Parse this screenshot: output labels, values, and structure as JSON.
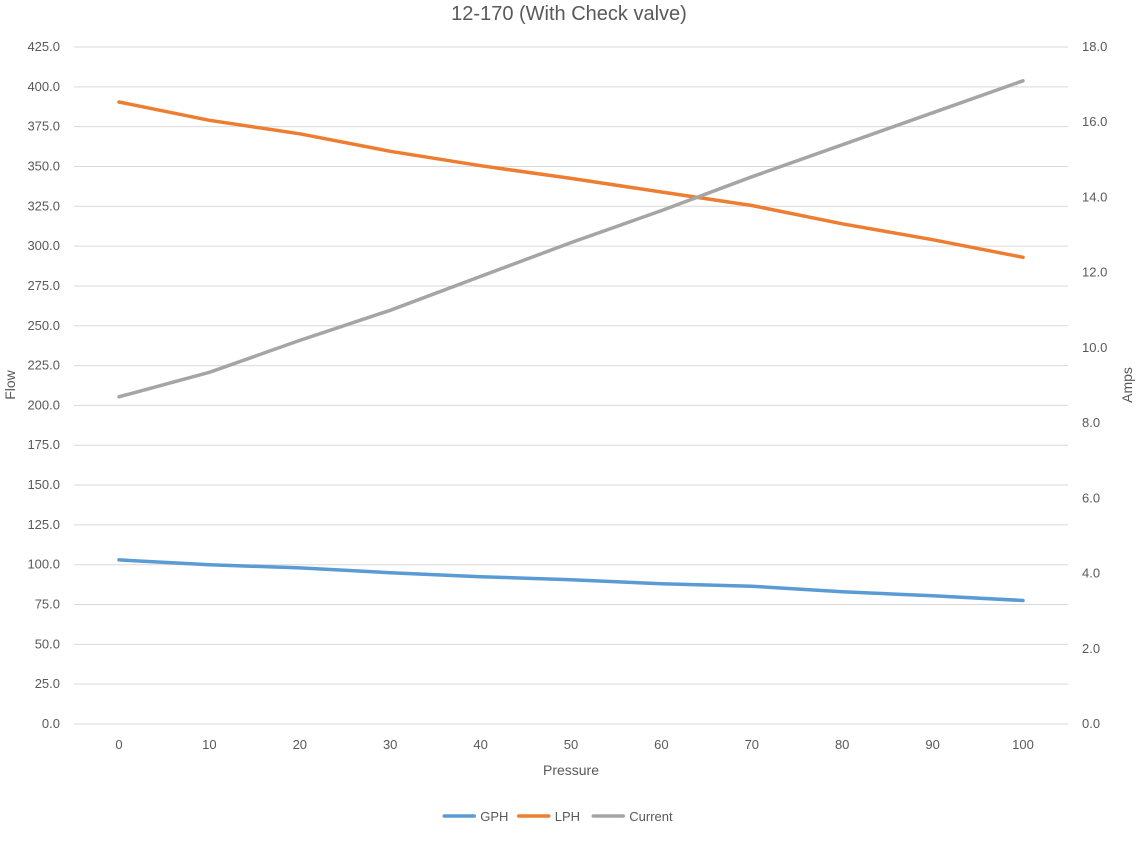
{
  "chart_data": {
    "type": "line",
    "title": "12-170 (With Check valve)",
    "xlabel": "Pressure",
    "ylabel": "Flow",
    "y2label": "Amps",
    "x": [
      0,
      10,
      20,
      30,
      40,
      50,
      60,
      70,
      80,
      90,
      100
    ],
    "ylim": [
      0,
      425
    ],
    "y2lim": [
      0,
      18
    ],
    "y_ticks": [
      "0.0",
      "25.0",
      "50.0",
      "75.0",
      "100.0",
      "125.0",
      "150.0",
      "175.0",
      "200.0",
      "225.0",
      "250.0",
      "275.0",
      "300.0",
      "325.0",
      "350.0",
      "375.0",
      "400.0",
      "425.0"
    ],
    "y2_ticks": [
      "0.0",
      "2.0",
      "4.0",
      "6.0",
      "8.0",
      "10.0",
      "12.0",
      "14.0",
      "16.0",
      "18.0"
    ],
    "grid": true,
    "legend_position": "bottom",
    "series": [
      {
        "name": "GPH",
        "axis": "left",
        "color": "#5b9bd5",
        "values": [
          103,
          100,
          98,
          95,
          92.5,
          90.5,
          88,
          86.5,
          83,
          80.5,
          77.5
        ]
      },
      {
        "name": "LPH",
        "axis": "left",
        "color": "#ed7d31",
        "values": [
          390.5,
          379,
          370.5,
          359.5,
          350.5,
          342.5,
          334,
          325.5,
          314,
          304,
          293
        ]
      },
      {
        "name": "Current",
        "axis": "right",
        "color": "#a5a5a5",
        "values": [
          8.7,
          9.35,
          10.2,
          11.0,
          11.9,
          12.8,
          13.65,
          14.55,
          15.4,
          16.25,
          17.1
        ]
      }
    ]
  }
}
